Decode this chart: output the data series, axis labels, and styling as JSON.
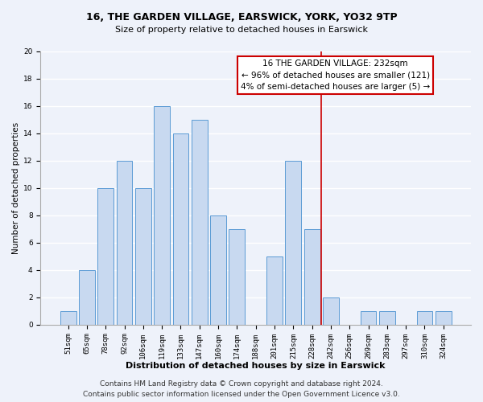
{
  "title": "16, THE GARDEN VILLAGE, EARSWICK, YORK, YO32 9TP",
  "subtitle": "Size of property relative to detached houses in Earswick",
  "xlabel": "Distribution of detached houses by size in Earswick",
  "ylabel": "Number of detached properties",
  "bar_labels": [
    "51sqm",
    "65sqm",
    "78sqm",
    "92sqm",
    "106sqm",
    "119sqm",
    "133sqm",
    "147sqm",
    "160sqm",
    "174sqm",
    "188sqm",
    "201sqm",
    "215sqm",
    "228sqm",
    "242sqm",
    "256sqm",
    "269sqm",
    "283sqm",
    "297sqm",
    "310sqm",
    "324sqm"
  ],
  "bar_values": [
    1,
    4,
    10,
    12,
    10,
    16,
    14,
    15,
    8,
    7,
    0,
    5,
    12,
    7,
    2,
    0,
    1,
    1,
    0,
    1,
    1
  ],
  "bar_color": "#c8d9f0",
  "bar_edgecolor": "#5b9bd5",
  "vline_x": 13.5,
  "vline_color": "#cc0000",
  "ylim": [
    0,
    20
  ],
  "yticks": [
    0,
    2,
    4,
    6,
    8,
    10,
    12,
    14,
    16,
    18,
    20
  ],
  "annotation_title": "16 THE GARDEN VILLAGE: 232sqm",
  "annotation_line1": "← 96% of detached houses are smaller (121)",
  "annotation_line2": "4% of semi-detached houses are larger (5) →",
  "annotation_box_color": "#ffffff",
  "annotation_box_edgecolor": "#cc0000",
  "footer_line1": "Contains HM Land Registry data © Crown copyright and database right 2024.",
  "footer_line2": "Contains public sector information licensed under the Open Government Licence v3.0.",
  "background_color": "#eef2fa",
  "grid_color": "#ffffff",
  "title_fontsize": 9,
  "subtitle_fontsize": 8,
  "xlabel_fontsize": 8,
  "ylabel_fontsize": 7.5,
  "tick_fontsize": 6.5,
  "annotation_fontsize": 7.5,
  "footer_fontsize": 6.5
}
